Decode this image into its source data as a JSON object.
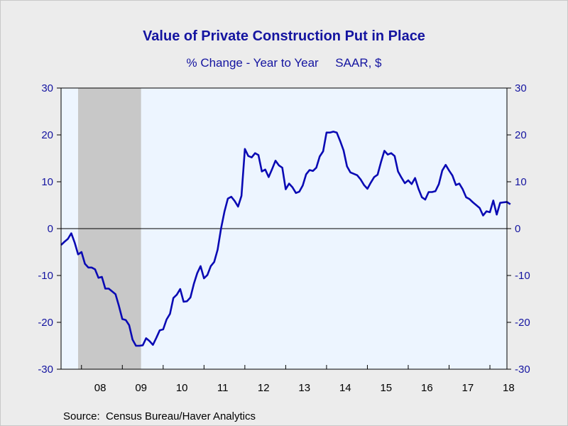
{
  "chart_data": {
    "type": "line",
    "title": "Value of Private Construction Put in Place",
    "subtitle": "% Change - Year to Year     SAAR, $",
    "source": "Source:  Census Bureau/Haver Analytics",
    "ylim": [
      -30,
      30
    ],
    "y_ticks": [
      "30",
      "20",
      "10",
      "0",
      "-10",
      "-20",
      "-30"
    ],
    "y_tick_values": [
      30,
      20,
      10,
      0,
      -10,
      -20,
      -30
    ],
    "x_ticks": [
      "08",
      "09",
      "10",
      "11",
      "12",
      "13",
      "14",
      "15",
      "16",
      "17",
      "18"
    ],
    "x_range": [
      "2007-07",
      "2018-06"
    ],
    "recession": {
      "start": "2007-12",
      "end": "2009-06"
    },
    "grid": false,
    "colors": {
      "line": "#0a0ab4",
      "text": "#1414a0",
      "plot_bg": "#edf5ff",
      "recession": "#c8c8c8"
    },
    "series": [
      {
        "x_start": "2007-07",
        "values": [
          -3.5,
          -2.8,
          -2.2,
          -1.0,
          -3.0,
          -5.5,
          -5.0,
          -7.5,
          -8.3,
          -8.3,
          -8.7,
          -10.5,
          -10.3,
          -12.8,
          -12.8,
          -13.4,
          -14.0,
          -16.5,
          -19.3,
          -19.5,
          -20.6,
          -23.7,
          -25.0,
          -25.0,
          -24.9,
          -23.4,
          -24.0,
          -24.8,
          -23.3,
          -21.7,
          -21.5,
          -19.4,
          -18.2,
          -14.8,
          -14.1,
          -12.9,
          -15.6,
          -15.5,
          -14.7,
          -11.8,
          -9.5,
          -8.0,
          -10.6,
          -9.9,
          -8.0,
          -7.1,
          -4.5,
          0.0,
          3.6,
          6.4,
          6.8,
          5.9,
          4.7,
          7.0,
          17.0,
          15.5,
          15.2,
          16.1,
          15.7,
          12.2,
          12.6,
          11.0,
          12.7,
          14.5,
          13.5,
          13.0,
          8.4,
          9.6,
          8.8,
          7.6,
          7.9,
          9.2,
          11.6,
          12.5,
          12.3,
          13.0,
          15.4,
          16.5,
          20.5,
          20.5,
          20.7,
          20.5,
          18.7,
          16.7,
          13.3,
          12.0,
          11.7,
          11.4,
          10.5,
          9.3,
          8.5,
          9.8,
          11.0,
          11.5,
          14.2,
          16.6,
          15.8,
          16.1,
          15.5,
          12.2,
          10.9,
          9.7,
          10.3,
          9.5,
          10.8,
          8.5,
          6.7,
          6.2,
          7.8,
          7.8,
          8.0,
          9.5,
          12.4,
          13.6,
          12.4,
          11.3,
          9.3,
          9.6,
          8.4,
          6.7,
          6.3,
          5.6,
          5.0,
          4.4,
          2.8,
          3.7,
          3.5,
          6.0,
          3.0,
          5.5,
          5.6,
          5.7,
          5.2
        ]
      }
    ]
  }
}
